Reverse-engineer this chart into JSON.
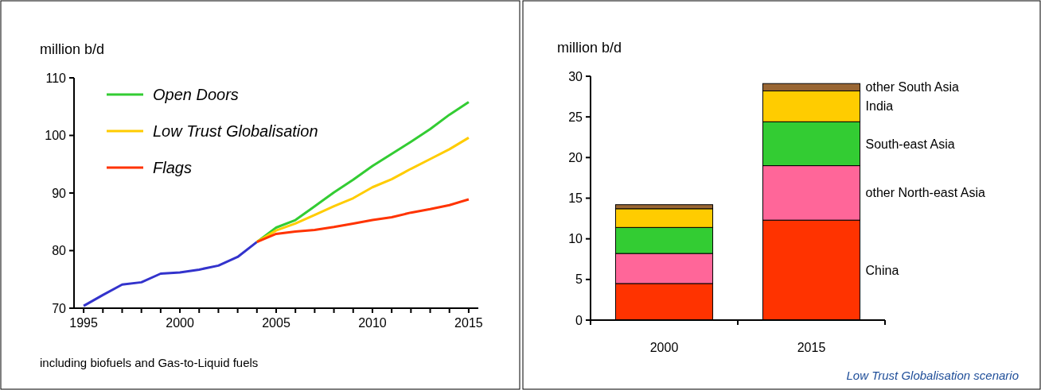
{
  "chart_data": [
    {
      "type": "line",
      "ylabel": "million b/d",
      "x": [
        1995,
        1996,
        1997,
        1998,
        1999,
        2000,
        2001,
        2002,
        2003,
        2004,
        2005,
        2006,
        2007,
        2008,
        2009,
        2010,
        2011,
        2012,
        2013,
        2014,
        2015
      ],
      "xlim": [
        1994.5,
        2015.5
      ],
      "ylim": [
        70,
        110
      ],
      "yticks": [
        70,
        80,
        90,
        100,
        110
      ],
      "xticks": [
        1995,
        {
          "value": 1996,
          "label": null
        },
        {
          "value": 1997,
          "label": null
        },
        {
          "value": 1998,
          "label": null
        },
        {
          "value": 1999,
          "label": null
        },
        2000,
        {
          "value": 2001,
          "label": null
        },
        {
          "value": 2002,
          "label": null
        },
        {
          "value": 2003,
          "label": null
        },
        {
          "value": 2004,
          "label": null
        },
        2005,
        {
          "value": 2006,
          "label": null
        },
        {
          "value": 2007,
          "label": null
        },
        {
          "value": 2008,
          "label": null
        },
        {
          "value": 2009,
          "label": null
        },
        2010,
        {
          "value": 2011,
          "label": null
        },
        {
          "value": 2012,
          "label": null
        },
        {
          "value": 2013,
          "label": null
        },
        {
          "value": 2014,
          "label": null
        },
        2015
      ],
      "legend": "top left",
      "grid": false,
      "line_style": "solid",
      "marker": "none",
      "series": [
        {
          "color": "#3333cc",
          "values": [
            70.4,
            72.3,
            74.1,
            74.5,
            76.0,
            76.2,
            76.7,
            77.4,
            78.9,
            81.5,
            null,
            null,
            null,
            null,
            null,
            null,
            null,
            null,
            null,
            null,
            null
          ]
        },
        {
          "name": "Open Doors",
          "color": "#33cc33",
          "values": [
            null,
            null,
            null,
            null,
            null,
            null,
            null,
            null,
            null,
            81.5,
            84.0,
            85.3,
            87.7,
            90.1,
            92.3,
            94.7,
            96.8,
            98.9,
            101.1,
            103.6,
            105.8
          ]
        },
        {
          "name": "Low Trust Globalisation",
          "color": "#ffcc00",
          "values": [
            null,
            null,
            null,
            null,
            null,
            null,
            null,
            null,
            null,
            81.5,
            83.5,
            84.7,
            86.2,
            87.7,
            89.1,
            91.0,
            92.4,
            94.2,
            95.9,
            97.6,
            99.6
          ]
        },
        {
          "name": "Flags",
          "color": "#ff3300",
          "values": [
            null,
            null,
            null,
            null,
            null,
            null,
            null,
            null,
            null,
            81.5,
            82.9,
            83.3,
            83.6,
            84.1,
            84.7,
            85.3,
            85.8,
            86.6,
            87.2,
            87.9,
            88.9
          ]
        }
      ],
      "annotations": [
        "including biofuels and Gas-to-Liquid fuels"
      ]
    },
    {
      "type": "bar",
      "stacked": true,
      "ylabel": "million b/d",
      "categories": [
        "2000",
        "2015"
      ],
      "ylim": [
        0,
        30
      ],
      "yticks": [
        0,
        5,
        10,
        15,
        20,
        25,
        30
      ],
      "grid": false,
      "legend": "right",
      "series": [
        {
          "name": "China",
          "color": "#ff3300",
          "values": [
            4.5,
            12.3
          ]
        },
        {
          "name": "other North-east Asia",
          "color": "#ff6699",
          "values": [
            3.7,
            6.7
          ]
        },
        {
          "name": "South-east Asia",
          "color": "#33cc33",
          "values": [
            3.2,
            5.4
          ]
        },
        {
          "name": "India",
          "color": "#ffcc00",
          "values": [
            2.3,
            3.8
          ]
        },
        {
          "name": "other South Asia",
          "color": "#996633",
          "values": [
            0.5,
            0.9
          ]
        }
      ],
      "annotations": [
        "Low Trust Globalisation scenario"
      ]
    }
  ]
}
